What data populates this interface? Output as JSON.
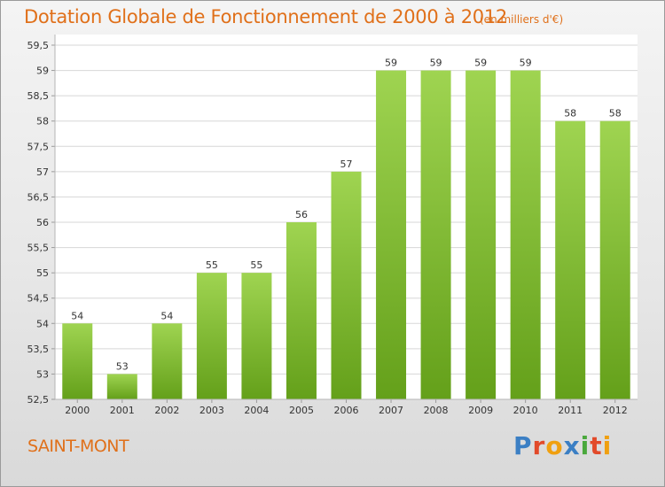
{
  "header": {
    "title": "Dotation Globale de Fonctionnement de 2000 à 2012",
    "units": "(en milliers d'€)"
  },
  "footer": {
    "commune": "SAINT-MONT",
    "brand": "Proxiti"
  },
  "colors": {
    "accent": "#e0701a",
    "bar_top": "#9fd451",
    "bar_bottom": "#64a01a",
    "gridline": "#d7d7d7"
  },
  "chart_data": {
    "type": "bar",
    "title": "Dotation Globale de Fonctionnement de 2000 à 2012",
    "subtitle": "(en milliers d'€)",
    "xlabel": "",
    "ylabel": "",
    "categories": [
      "2000",
      "2001",
      "2002",
      "2003",
      "2004",
      "2005",
      "2006",
      "2007",
      "2008",
      "2009",
      "2010",
      "2011",
      "2012"
    ],
    "values": [
      54,
      53,
      54,
      55,
      55,
      56,
      57,
      59,
      59,
      59,
      59,
      58,
      58
    ],
    "data_labels": [
      "54",
      "53",
      "54",
      "55",
      "55",
      "56",
      "57",
      "59",
      "59",
      "59",
      "59",
      "58",
      "58"
    ],
    "ylim": [
      52.5,
      59.5
    ],
    "yticks": [
      52.5,
      53,
      53.5,
      54,
      54.5,
      55,
      55.5,
      56,
      56.5,
      57,
      57.5,
      58,
      58.5,
      59,
      59.5
    ],
    "ytick_labels": [
      "52,5",
      "53",
      "53,5",
      "54",
      "54,5",
      "55",
      "55,5",
      "56",
      "56,5",
      "57",
      "57,5",
      "58",
      "58,5",
      "59",
      "59,5"
    ],
    "grid": true,
    "legend": "none"
  }
}
